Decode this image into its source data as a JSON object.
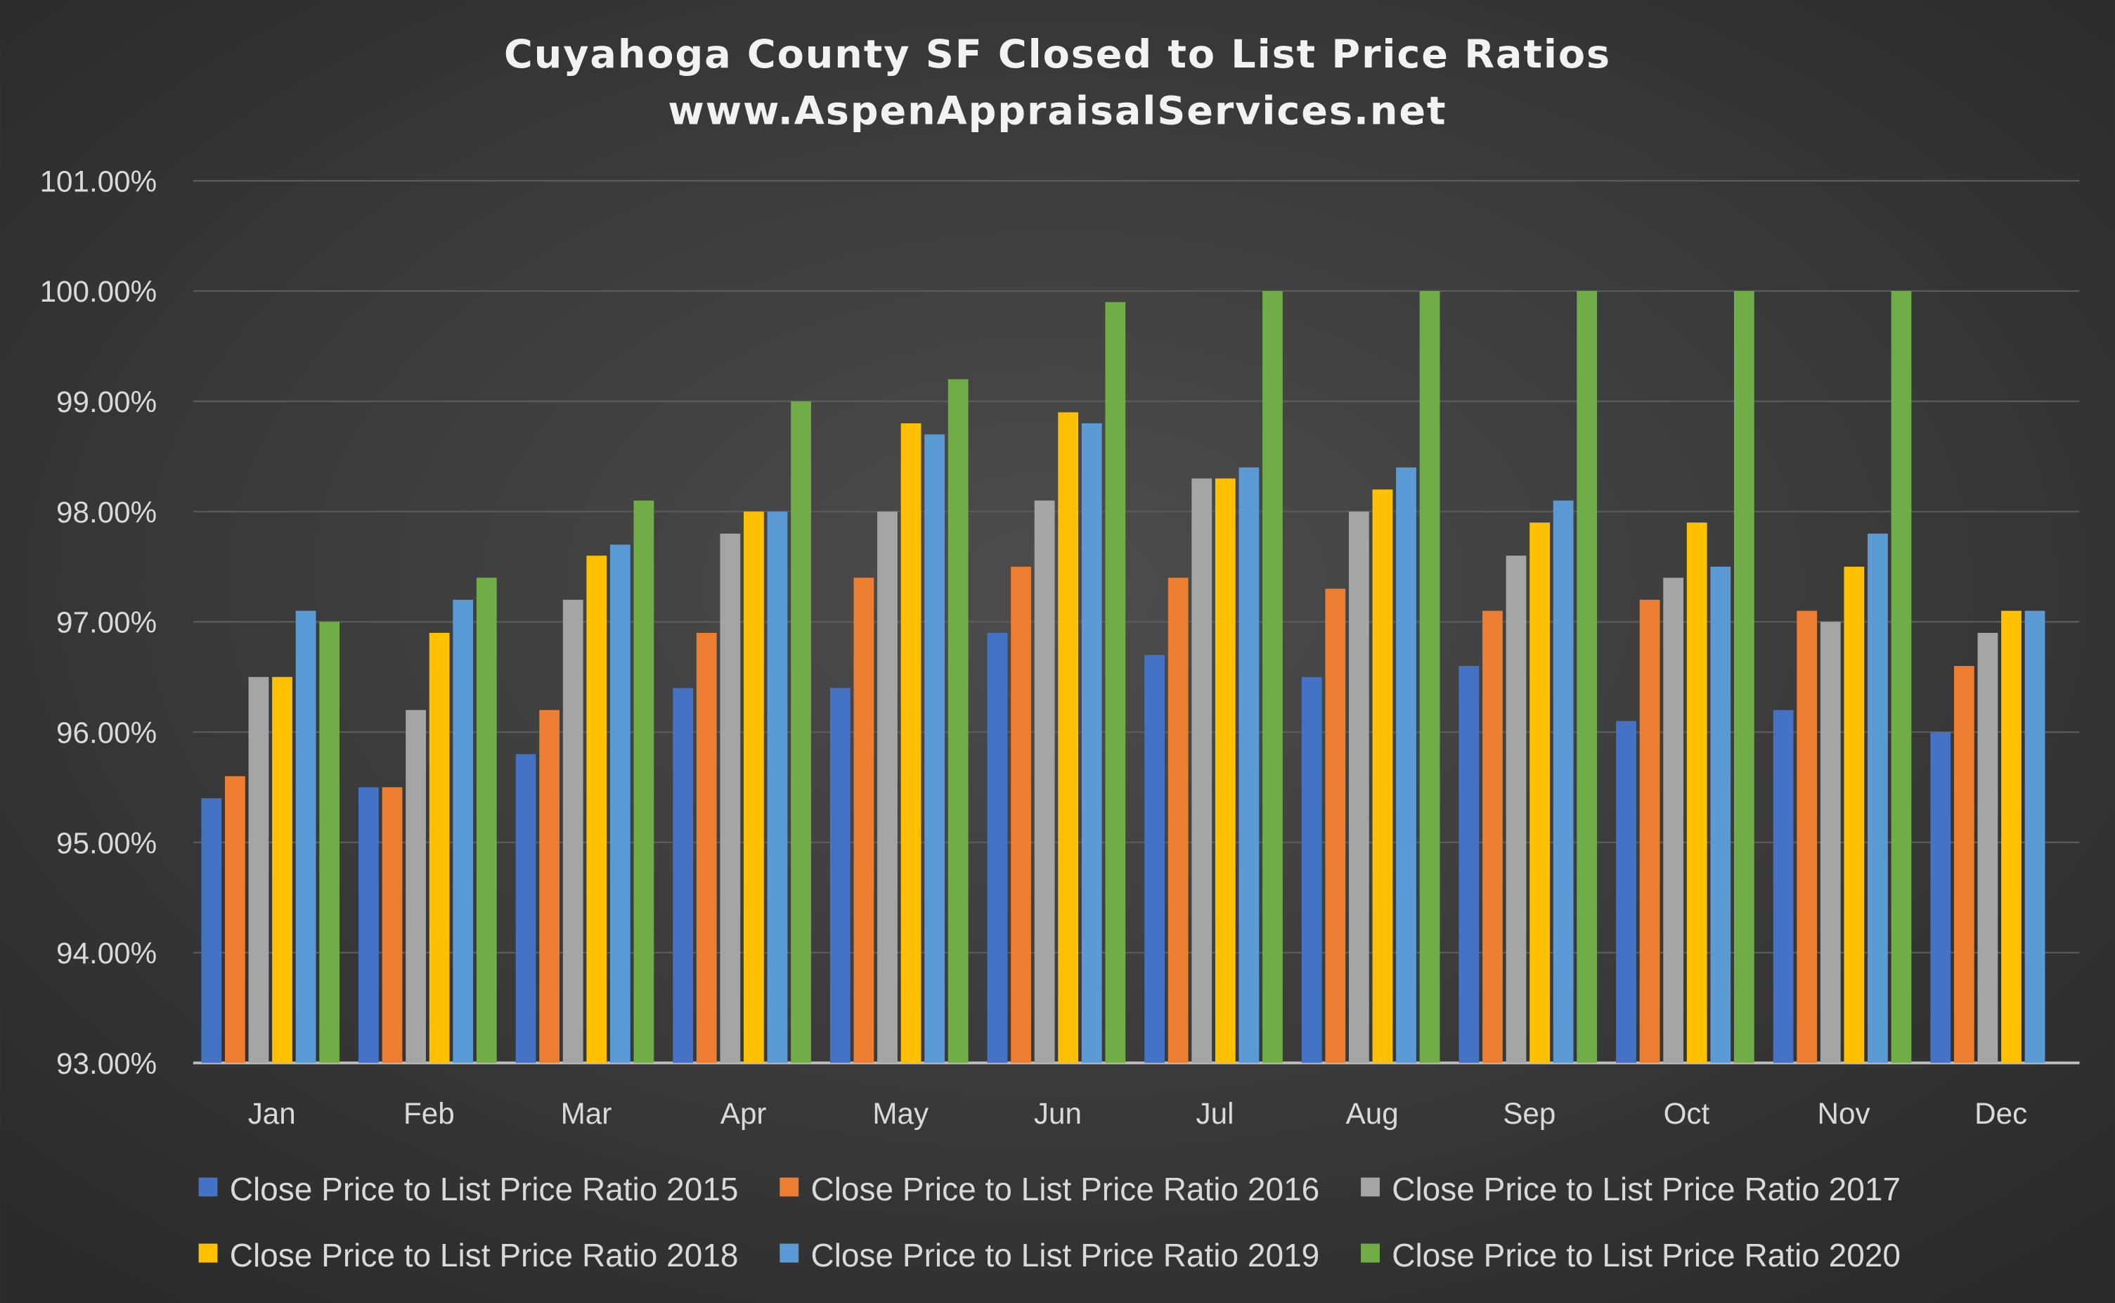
{
  "chart_data": {
    "type": "bar",
    "title": "Cuyahoga County SF Closed to List Price Ratios",
    "subtitle": "www.AspenAppraisalServices.net",
    "xlabel": "",
    "ylabel": "",
    "ylim": [
      93,
      101
    ],
    "yticks": [
      "93.00%",
      "94.00%",
      "95.00%",
      "96.00%",
      "97.00%",
      "98.00%",
      "99.00%",
      "100.00%",
      "101.00%"
    ],
    "grid": true,
    "legend_position": "bottom",
    "categories": [
      "Jan",
      "Feb",
      "Mar",
      "Apr",
      "May",
      "Jun",
      "Jul",
      "Aug",
      "Sep",
      "Oct",
      "Nov",
      "Dec"
    ],
    "series": [
      {
        "name": "Close Price to List Price Ratio 2015",
        "color": "#4472c4",
        "values": [
          95.4,
          95.5,
          95.8,
          96.4,
          96.4,
          96.9,
          96.7,
          96.5,
          96.6,
          96.1,
          96.2,
          96.0
        ]
      },
      {
        "name": "Close Price to List Price Ratio 2016",
        "color": "#ed7d31",
        "values": [
          95.6,
          95.5,
          96.2,
          96.9,
          97.4,
          97.5,
          97.4,
          97.3,
          97.1,
          97.2,
          97.1,
          96.6
        ]
      },
      {
        "name": "Close Price to List Price Ratio 2017",
        "color": "#a5a5a5",
        "values": [
          96.5,
          96.2,
          97.2,
          97.8,
          98.0,
          98.1,
          98.3,
          98.0,
          97.6,
          97.4,
          97.0,
          96.9
        ]
      },
      {
        "name": "Close Price to List Price Ratio 2018",
        "color": "#ffc000",
        "values": [
          96.5,
          96.9,
          97.6,
          98.0,
          98.8,
          98.9,
          98.3,
          98.2,
          97.9,
          97.9,
          97.5,
          97.1
        ]
      },
      {
        "name": "Close Price to List Price Ratio 2019",
        "color": "#5b9bd5",
        "values": [
          97.1,
          97.2,
          97.7,
          98.0,
          98.7,
          98.8,
          98.4,
          98.4,
          98.1,
          97.5,
          97.8,
          97.1
        ]
      },
      {
        "name": "Close Price to List Price Ratio 2020",
        "color": "#70ad47",
        "values": [
          97.0,
          97.4,
          98.1,
          99.0,
          99.2,
          99.9,
          100.0,
          100.0,
          100.0,
          100.0,
          100.0,
          null
        ]
      }
    ]
  }
}
